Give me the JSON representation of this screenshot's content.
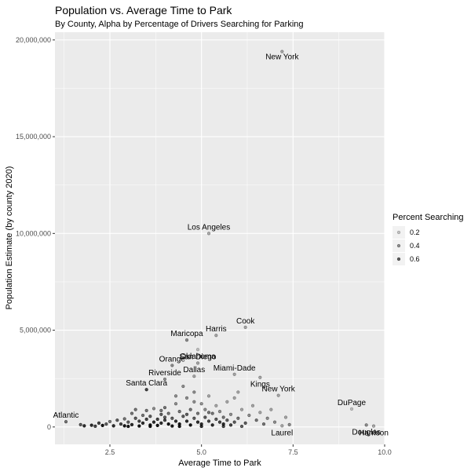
{
  "chart_data": {
    "type": "scatter",
    "title": "Population vs. Average Time to Park",
    "subtitle": "By County, Alpha by Percentage of Drivers Searching for Parking",
    "xlabel": "Average Time to Park",
    "ylabel": "Population Estimate (by county 2020)",
    "xlim": [
      1.0,
      10.0
    ],
    "ylim": [
      -900000,
      20400000
    ],
    "x_ticks": [
      2.5,
      5.0,
      7.5,
      10.0
    ],
    "x_tick_labels": [
      "2.5",
      "5.0",
      "7.5",
      "10.0"
    ],
    "y_ticks": [
      0,
      5000000,
      10000000,
      15000000,
      20000000
    ],
    "y_tick_labels": [
      "0",
      "5,000,000",
      "10,000,000",
      "15,000,000",
      "20,000,000"
    ],
    "grid": true,
    "legend": {
      "title": "Percent Searching",
      "position": "right",
      "entries": [
        {
          "label": "0.2",
          "value": 0.2
        },
        {
          "label": "0.4",
          "value": 0.4
        },
        {
          "label": "0.6",
          "value": 0.6
        }
      ]
    },
    "labeled_points": [
      {
        "label": "New York",
        "x": 7.2,
        "y": 19400000,
        "alpha": 0.3
      },
      {
        "label": "Los Angeles",
        "x": 5.2,
        "y": 10000000,
        "alpha": 0.3
      },
      {
        "label": "Cook",
        "x": 6.2,
        "y": 5150000,
        "alpha": 0.3
      },
      {
        "label": "Harris",
        "x": 5.4,
        "y": 4730000,
        "alpha": 0.3
      },
      {
        "label": "Maricopa",
        "x": 4.6,
        "y": 4490000,
        "alpha": 0.4
      },
      {
        "label": "Oklahoma",
        "x": 4.9,
        "y": 4000000,
        "alpha": 0.2
      },
      {
        "label": "San Diego",
        "x": 4.9,
        "y": 3300000,
        "alpha": 0.3
      },
      {
        "label": "Orange",
        "x": 4.2,
        "y": 3180000,
        "alpha": 0.4
      },
      {
        "label": "Dallas",
        "x": 4.8,
        "y": 2620000,
        "alpha": 0.3
      },
      {
        "label": "Miami-Dade",
        "x": 5.9,
        "y": 2720000,
        "alpha": 0.3
      },
      {
        "label": "Riverside",
        "x": 4.0,
        "y": 2470000,
        "alpha": 0.4
      },
      {
        "label": "Kings",
        "x": 6.6,
        "y": 2560000,
        "alpha": 0.3
      },
      {
        "label": "Santa Clara",
        "x": 3.5,
        "y": 1930000,
        "alpha": 0.7
      },
      {
        "label": "New York",
        "x": 7.1,
        "y": 1630000,
        "alpha": 0.3
      },
      {
        "label": "Atlantic",
        "x": 1.3,
        "y": 270000,
        "alpha": 0.5
      },
      {
        "label": "DuPage",
        "x": 9.1,
        "y": 930000,
        "alpha": 0.2
      },
      {
        "label": "Douglas",
        "x": 9.5,
        "y": 100000,
        "alpha": 0.4
      },
      {
        "label": "Laurel",
        "x": 7.2,
        "y": 60000,
        "alpha": 0.3
      },
      {
        "label": "Harrison",
        "x": 9.7,
        "y": 50000,
        "alpha": 0.3
      }
    ],
    "points": [
      {
        "x": 1.7,
        "y": 120000,
        "alpha": 0.6
      },
      {
        "x": 1.8,
        "y": 60000,
        "alpha": 0.8
      },
      {
        "x": 2.1,
        "y": 40000,
        "alpha": 0.7
      },
      {
        "x": 2.3,
        "y": 80000,
        "alpha": 0.9
      },
      {
        "x": 2.4,
        "y": 150000,
        "alpha": 0.6
      },
      {
        "x": 2.5,
        "y": 280000,
        "alpha": 0.5
      },
      {
        "x": 2.6,
        "y": 60000,
        "alpha": 0.8
      },
      {
        "x": 2.7,
        "y": 350000,
        "alpha": 0.6
      },
      {
        "x": 2.8,
        "y": 150000,
        "alpha": 0.7
      },
      {
        "x": 2.9,
        "y": 420000,
        "alpha": 0.5
      },
      {
        "x": 2.9,
        "y": 60000,
        "alpha": 0.9
      },
      {
        "x": 3.0,
        "y": 250000,
        "alpha": 0.6
      },
      {
        "x": 3.1,
        "y": 700000,
        "alpha": 0.5
      },
      {
        "x": 3.1,
        "y": 120000,
        "alpha": 0.8
      },
      {
        "x": 3.2,
        "y": 450000,
        "alpha": 0.6
      },
      {
        "x": 3.2,
        "y": 900000,
        "alpha": 0.5
      },
      {
        "x": 3.3,
        "y": 300000,
        "alpha": 0.7
      },
      {
        "x": 3.3,
        "y": 50000,
        "alpha": 0.9
      },
      {
        "x": 3.4,
        "y": 600000,
        "alpha": 0.5
      },
      {
        "x": 3.4,
        "y": 200000,
        "alpha": 0.8
      },
      {
        "x": 3.5,
        "y": 850000,
        "alpha": 0.5
      },
      {
        "x": 3.5,
        "y": 400000,
        "alpha": 0.7
      },
      {
        "x": 3.6,
        "y": 100000,
        "alpha": 0.9
      },
      {
        "x": 3.6,
        "y": 550000,
        "alpha": 0.6
      },
      {
        "x": 3.7,
        "y": 250000,
        "alpha": 0.8
      },
      {
        "x": 3.7,
        "y": 950000,
        "alpha": 0.4
      },
      {
        "x": 3.8,
        "y": 400000,
        "alpha": 0.7
      },
      {
        "x": 3.8,
        "y": 80000,
        "alpha": 0.9
      },
      {
        "x": 3.9,
        "y": 650000,
        "alpha": 0.6
      },
      {
        "x": 3.9,
        "y": 200000,
        "alpha": 0.8
      },
      {
        "x": 4.0,
        "y": 1000000,
        "alpha": 0.5
      },
      {
        "x": 4.0,
        "y": 350000,
        "alpha": 0.7
      },
      {
        "x": 4.1,
        "y": 150000,
        "alpha": 0.9
      },
      {
        "x": 4.1,
        "y": 700000,
        "alpha": 0.5
      },
      {
        "x": 4.2,
        "y": 450000,
        "alpha": 0.6
      },
      {
        "x": 4.2,
        "y": 50000,
        "alpha": 0.9
      },
      {
        "x": 4.3,
        "y": 1200000,
        "alpha": 0.4
      },
      {
        "x": 4.3,
        "y": 300000,
        "alpha": 0.8
      },
      {
        "x": 4.4,
        "y": 800000,
        "alpha": 0.5
      },
      {
        "x": 4.4,
        "y": 150000,
        "alpha": 0.9
      },
      {
        "x": 4.5,
        "y": 550000,
        "alpha": 0.6
      },
      {
        "x": 4.5,
        "y": 2100000,
        "alpha": 0.4
      },
      {
        "x": 4.6,
        "y": 300000,
        "alpha": 0.8
      },
      {
        "x": 4.6,
        "y": 1500000,
        "alpha": 0.4
      },
      {
        "x": 4.7,
        "y": 900000,
        "alpha": 0.5
      },
      {
        "x": 4.7,
        "y": 100000,
        "alpha": 0.9
      },
      {
        "x": 4.8,
        "y": 450000,
        "alpha": 0.6
      },
      {
        "x": 4.8,
        "y": 1800000,
        "alpha": 0.4
      },
      {
        "x": 4.9,
        "y": 250000,
        "alpha": 0.8
      },
      {
        "x": 4.9,
        "y": 700000,
        "alpha": 0.5
      },
      {
        "x": 5.0,
        "y": 1200000,
        "alpha": 0.4
      },
      {
        "x": 5.0,
        "y": 150000,
        "alpha": 0.8
      },
      {
        "x": 5.1,
        "y": 500000,
        "alpha": 0.6
      },
      {
        "x": 5.1,
        "y": 900000,
        "alpha": 0.4
      },
      {
        "x": 5.2,
        "y": 300000,
        "alpha": 0.7
      },
      {
        "x": 5.2,
        "y": 1600000,
        "alpha": 0.3
      },
      {
        "x": 5.3,
        "y": 700000,
        "alpha": 0.5
      },
      {
        "x": 5.3,
        "y": 100000,
        "alpha": 0.8
      },
      {
        "x": 5.4,
        "y": 400000,
        "alpha": 0.6
      },
      {
        "x": 5.4,
        "y": 1100000,
        "alpha": 0.3
      },
      {
        "x": 5.5,
        "y": 250000,
        "alpha": 0.7
      },
      {
        "x": 5.5,
        "y": 800000,
        "alpha": 0.4
      },
      {
        "x": 5.6,
        "y": 500000,
        "alpha": 0.5
      },
      {
        "x": 5.6,
        "y": 150000,
        "alpha": 0.8
      },
      {
        "x": 5.7,
        "y": 1300000,
        "alpha": 0.3
      },
      {
        "x": 5.7,
        "y": 350000,
        "alpha": 0.6
      },
      {
        "x": 5.8,
        "y": 100000,
        "alpha": 0.7
      },
      {
        "x": 5.8,
        "y": 650000,
        "alpha": 0.4
      },
      {
        "x": 5.9,
        "y": 250000,
        "alpha": 0.6
      },
      {
        "x": 6.0,
        "y": 1800000,
        "alpha": 0.3
      },
      {
        "x": 6.0,
        "y": 450000,
        "alpha": 0.5
      },
      {
        "x": 6.1,
        "y": 900000,
        "alpha": 0.3
      },
      {
        "x": 6.2,
        "y": 200000,
        "alpha": 0.6
      },
      {
        "x": 6.3,
        "y": 600000,
        "alpha": 0.4
      },
      {
        "x": 6.4,
        "y": 1100000,
        "alpha": 0.3
      },
      {
        "x": 6.5,
        "y": 350000,
        "alpha": 0.5
      },
      {
        "x": 6.6,
        "y": 750000,
        "alpha": 0.3
      },
      {
        "x": 6.7,
        "y": 150000,
        "alpha": 0.5
      },
      {
        "x": 6.8,
        "y": 450000,
        "alpha": 0.4
      },
      {
        "x": 6.9,
        "y": 900000,
        "alpha": 0.3
      },
      {
        "x": 7.0,
        "y": 250000,
        "alpha": 0.4
      },
      {
        "x": 7.3,
        "y": 500000,
        "alpha": 0.3
      },
      {
        "x": 7.4,
        "y": 120000,
        "alpha": 0.4
      },
      {
        "x": 3.0,
        "y": 30000,
        "alpha": 0.9
      },
      {
        "x": 3.6,
        "y": 30000,
        "alpha": 0.9
      },
      {
        "x": 4.4,
        "y": 30000,
        "alpha": 0.9
      },
      {
        "x": 5.0,
        "y": 30000,
        "alpha": 0.8
      },
      {
        "x": 5.6,
        "y": 30000,
        "alpha": 0.7
      },
      {
        "x": 6.1,
        "y": 30000,
        "alpha": 0.6
      },
      {
        "x": 2.2,
        "y": 200000,
        "alpha": 0.7
      },
      {
        "x": 2.0,
        "y": 90000,
        "alpha": 0.8
      },
      {
        "x": 4.0,
        "y": 500000,
        "alpha": 0.6
      },
      {
        "x": 4.6,
        "y": 650000,
        "alpha": 0.6
      },
      {
        "x": 5.2,
        "y": 750000,
        "alpha": 0.5
      },
      {
        "x": 3.9,
        "y": 850000,
        "alpha": 0.5
      },
      {
        "x": 4.8,
        "y": 1300000,
        "alpha": 0.4
      },
      {
        "x": 5.9,
        "y": 1500000,
        "alpha": 0.3
      },
      {
        "x": 4.3,
        "y": 1600000,
        "alpha": 0.4
      }
    ]
  }
}
